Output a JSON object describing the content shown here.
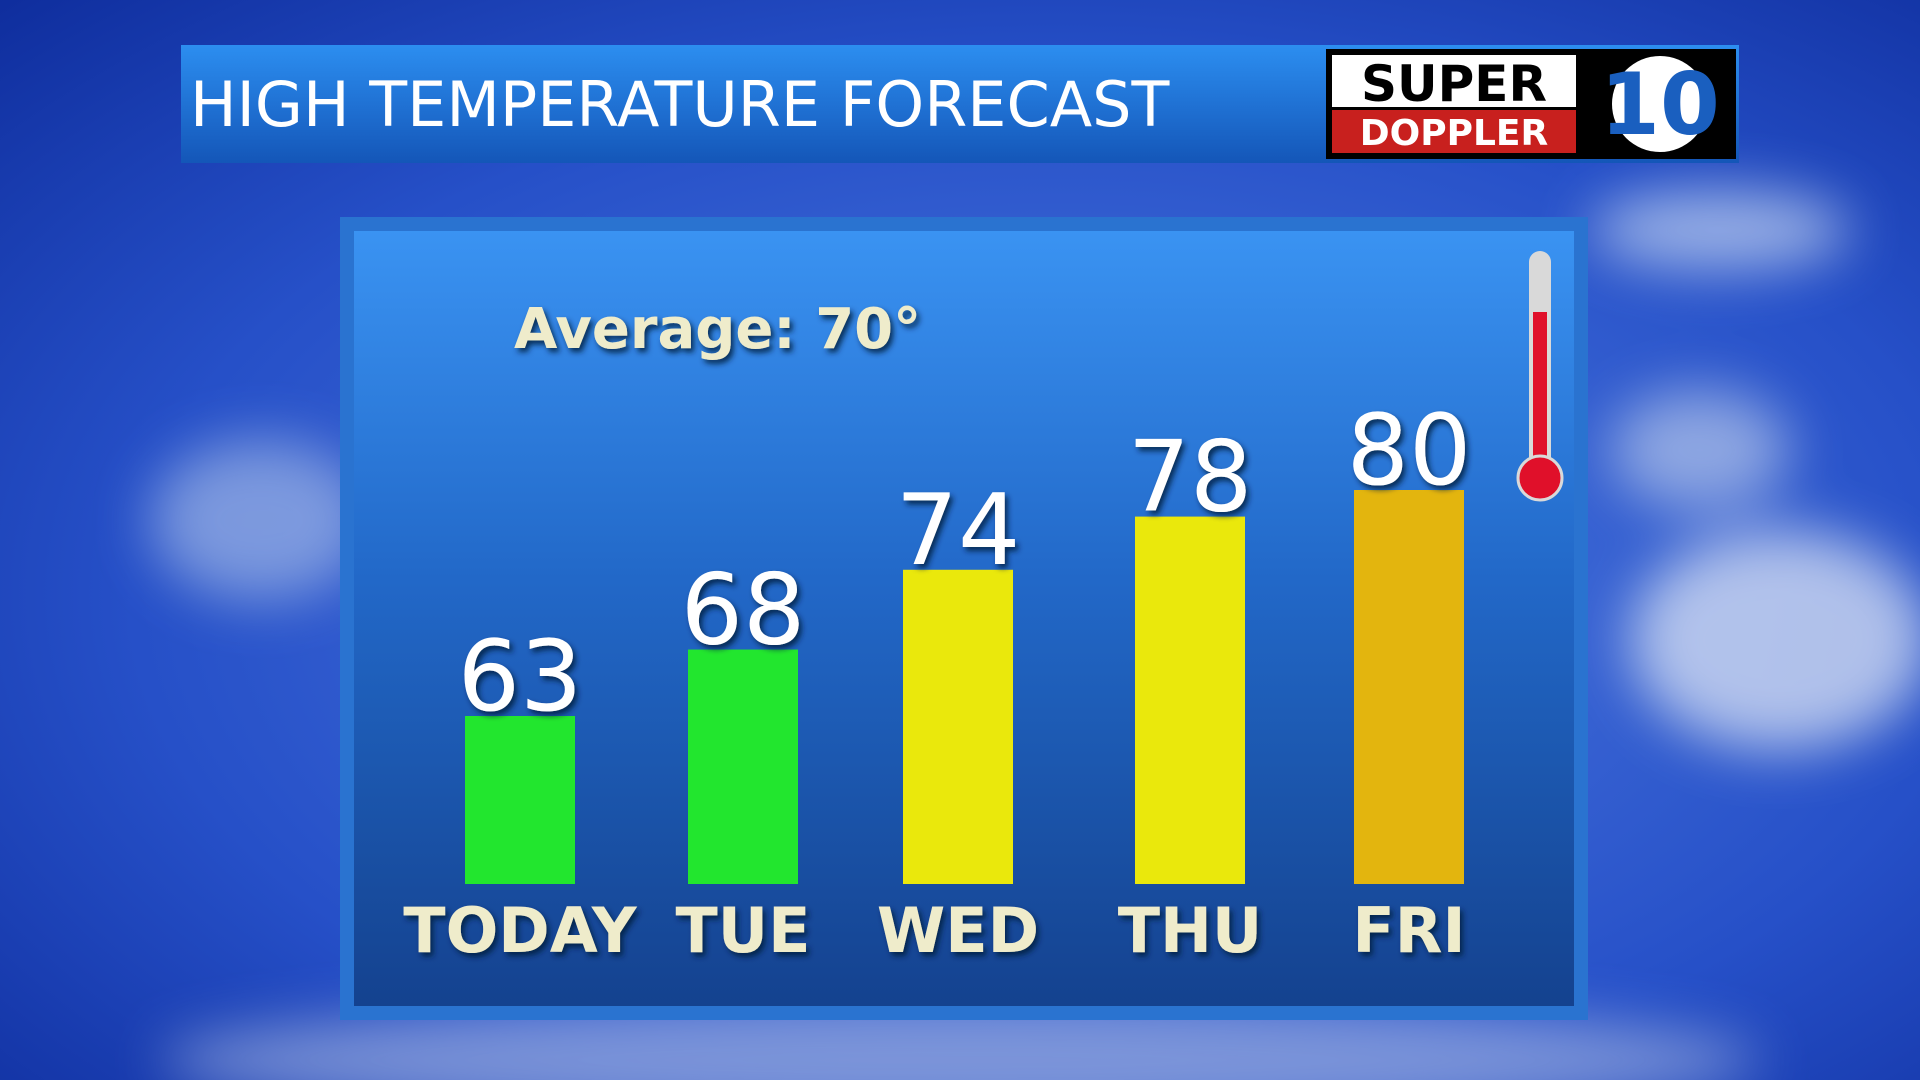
{
  "chart_data": {
    "type": "bar",
    "title": "HIGH TEMPERATURE FORECAST",
    "annotation": "Average: 70°",
    "categories": [
      "TODAY",
      "TUE",
      "WED",
      "THU",
      "FRI"
    ],
    "values": [
      63,
      68,
      74,
      78,
      80
    ],
    "colors": [
      "#22e62e",
      "#22e62e",
      "#eae80c",
      "#eae80c",
      "#e3b50e"
    ]
  },
  "logo": {
    "line1": "SUPER",
    "line2": "DOPPLER",
    "channel": "10"
  }
}
